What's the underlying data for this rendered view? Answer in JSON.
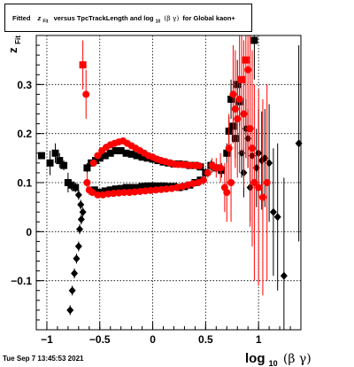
{
  "title": {
    "prefix": "Fitted",
    "z": "z",
    "z_sub": "Fit",
    "middle": "versus TpcTrackLength and log",
    "log_sub": "10",
    "bg": "(β γ)",
    "suffix": "for Global kaon+"
  },
  "footer": {
    "date": "Tue Sep  7 13:45:53 2021"
  },
  "colors": {
    "black_series": "#000000",
    "red_series": "#ff0000",
    "grid": "#000000"
  },
  "chart_data": {
    "type": "scatter",
    "title": "Fitted z_Fit versus TpcTrackLength and log_10 (β γ) for Global kaon+",
    "xlabel": {
      "main": "log",
      "sub": "10",
      "rest": "(β γ)"
    },
    "ylabel": {
      "main": "z",
      "sub": "Fit"
    },
    "xlim": [
      -1.1,
      1.4
    ],
    "ylim": [
      -0.2,
      0.4
    ],
    "x_ticks": [
      {
        "value": -1,
        "label": "−1"
      },
      {
        "value": -0.5,
        "label": "−0.5"
      },
      {
        "value": 0,
        "label": "0"
      },
      {
        "value": 0.5,
        "label": "0.5"
      },
      {
        "value": 1,
        "label": "1"
      }
    ],
    "y_ticks": [
      {
        "value": -0.1,
        "label": "−0.1"
      },
      {
        "value": 0,
        "label": "0"
      },
      {
        "value": 0.1,
        "label": "0.1"
      },
      {
        "value": 0.2,
        "label": "0.2"
      },
      {
        "value": 0.3,
        "label": "0.3"
      }
    ],
    "grid": true,
    "series": [
      {
        "color": "#000000",
        "points": [
          [
            -1.05,
            0.155,
            0.005,
            "square"
          ],
          [
            -0.97,
            0.14,
            0.025,
            "square"
          ],
          [
            -0.92,
            0.16,
            0.02,
            "square"
          ],
          [
            -0.88,
            0.145,
            0.015,
            "square"
          ],
          [
            -0.84,
            0.135,
            0.01,
            "square"
          ],
          [
            -0.8,
            0.1,
            0.02,
            "square"
          ],
          [
            -0.77,
            0.095,
            0.01,
            "square"
          ],
          [
            -0.73,
            0.09,
            0.01,
            "square"
          ],
          [
            -0.7,
            0.075,
            0.01,
            "diamond"
          ],
          [
            -0.68,
            0.055,
            0.01,
            "diamond"
          ],
          [
            -0.66,
            0.04,
            0.01,
            "diamond"
          ],
          [
            -0.675,
            0.025,
            0.01,
            "diamond"
          ],
          [
            -0.69,
            0.005,
            0.01,
            "diamond"
          ],
          [
            -0.7,
            -0.03,
            0.01,
            "diamond"
          ],
          [
            -0.72,
            -0.055,
            0.01,
            "diamond"
          ],
          [
            -0.74,
            -0.085,
            0.01,
            "diamond"
          ],
          [
            -0.76,
            -0.12,
            0.01,
            "diamond"
          ],
          [
            -0.78,
            -0.16,
            0.01,
            "diamond"
          ],
          [
            -0.62,
            0.13,
            0.01,
            "square"
          ],
          [
            -0.58,
            0.14,
            0.005,
            "square"
          ],
          [
            -0.54,
            0.145,
            0.005,
            "square"
          ],
          [
            -0.5,
            0.15,
            0.005,
            "square"
          ],
          [
            -0.45,
            0.155,
            0.005,
            "square"
          ],
          [
            -0.4,
            0.16,
            0.005,
            "square"
          ],
          [
            -0.35,
            0.165,
            0.005,
            "square"
          ],
          [
            -0.3,
            0.165,
            0.005,
            "square"
          ],
          [
            -0.25,
            0.16,
            0.005,
            "square"
          ],
          [
            -0.2,
            0.158,
            0.005,
            "square"
          ],
          [
            -0.15,
            0.155,
            0.005,
            "square"
          ],
          [
            -0.1,
            0.152,
            0.005,
            "square"
          ],
          [
            -0.05,
            0.15,
            0.005,
            "square"
          ],
          [
            0.0,
            0.148,
            0.005,
            "square"
          ],
          [
            0.05,
            0.145,
            0.005,
            "square"
          ],
          [
            0.1,
            0.142,
            0.005,
            "square"
          ],
          [
            0.15,
            0.14,
            0.005,
            "square"
          ],
          [
            0.2,
            0.138,
            0.005,
            "square"
          ],
          [
            0.25,
            0.138,
            0.005,
            "square"
          ],
          [
            0.3,
            0.137,
            0.005,
            "square"
          ],
          [
            0.35,
            0.135,
            0.005,
            "square"
          ],
          [
            0.4,
            0.135,
            0.005,
            "square"
          ],
          [
            0.45,
            0.132,
            0.005,
            "square"
          ],
          [
            -0.55,
            0.085,
            0.005,
            "square"
          ],
          [
            -0.5,
            0.08,
            0.005,
            "square"
          ],
          [
            -0.45,
            0.083,
            0.005,
            "square"
          ],
          [
            -0.4,
            0.085,
            0.005,
            "square"
          ],
          [
            -0.35,
            0.087,
            0.005,
            "square"
          ],
          [
            -0.3,
            0.088,
            0.005,
            "square"
          ],
          [
            -0.25,
            0.09,
            0.005,
            "square"
          ],
          [
            -0.2,
            0.09,
            0.005,
            "square"
          ],
          [
            -0.15,
            0.09,
            0.005,
            "square"
          ],
          [
            -0.1,
            0.092,
            0.005,
            "square"
          ],
          [
            -0.05,
            0.093,
            0.005,
            "square"
          ],
          [
            0.0,
            0.093,
            0.005,
            "square"
          ],
          [
            0.05,
            0.093,
            0.005,
            "square"
          ],
          [
            0.1,
            0.093,
            0.005,
            "square"
          ],
          [
            0.15,
            0.092,
            0.005,
            "square"
          ],
          [
            0.2,
            0.092,
            0.005,
            "square"
          ],
          [
            0.25,
            0.09,
            0.005,
            "square"
          ],
          [
            0.3,
            0.092,
            0.005,
            "square"
          ],
          [
            0.35,
            0.095,
            0.005,
            "square"
          ],
          [
            0.4,
            0.1,
            0.005,
            "square"
          ],
          [
            0.45,
            0.105,
            0.005,
            "square"
          ],
          [
            0.5,
            0.12,
            0.01,
            "square"
          ],
          [
            0.55,
            0.135,
            0.01,
            "square"
          ],
          [
            0.6,
            0.13,
            0.01,
            "square"
          ],
          [
            0.65,
            0.125,
            0.015,
            "square"
          ],
          [
            0.7,
            0.16,
            0.02,
            "square"
          ],
          [
            0.72,
            0.205,
            0.03,
            "square"
          ],
          [
            0.74,
            0.27,
            0.04,
            "square"
          ],
          [
            0.76,
            0.215,
            0.03,
            "square"
          ],
          [
            0.78,
            0.19,
            0.04,
            "square"
          ],
          [
            0.8,
            0.3,
            0.05,
            "square"
          ],
          [
            0.82,
            0.265,
            0.05,
            "square"
          ],
          [
            0.84,
            0.16,
            0.05,
            "diamond"
          ],
          [
            0.86,
            0.12,
            0.05,
            "diamond"
          ],
          [
            0.88,
            0.21,
            0.06,
            "diamond"
          ],
          [
            0.9,
            0.19,
            0.06,
            "diamond"
          ],
          [
            0.92,
            0.09,
            0.07,
            "diamond"
          ],
          [
            0.94,
            0.155,
            0.07,
            "diamond"
          ],
          [
            0.96,
            0.39,
            0.08,
            "square"
          ],
          [
            0.98,
            0.13,
            0.08,
            "diamond"
          ],
          [
            1.0,
            0.16,
            0.09,
            "diamond"
          ],
          [
            1.03,
            0.145,
            0.1,
            "diamond"
          ],
          [
            1.06,
            0.15,
            0.1,
            "diamond"
          ],
          [
            1.1,
            0.14,
            0.12,
            "diamond"
          ],
          [
            1.14,
            0.04,
            0.13,
            "diamond"
          ],
          [
            1.18,
            0.03,
            0.15,
            "diamond"
          ],
          [
            1.24,
            -0.09,
            0.2,
            "diamond"
          ],
          [
            1.38,
            0.18,
            0.2,
            "diamond"
          ]
        ]
      },
      {
        "color": "#ff0000",
        "points": [
          [
            -0.66,
            0.34,
            0.05,
            "square"
          ],
          [
            -0.63,
            0.28,
            0.05,
            "circle"
          ],
          [
            -0.62,
            0.1,
            0.02,
            "circle"
          ],
          [
            -0.6,
            0.085,
            0.01,
            "circle"
          ],
          [
            -0.57,
            0.08,
            0.005,
            "circle"
          ],
          [
            -0.56,
            0.14,
            0.005,
            "circle"
          ],
          [
            -0.52,
            0.155,
            0.005,
            "circle"
          ],
          [
            -0.48,
            0.165,
            0.005,
            "circle"
          ],
          [
            -0.44,
            0.172,
            0.005,
            "circle"
          ],
          [
            -0.4,
            0.177,
            0.005,
            "circle"
          ],
          [
            -0.36,
            0.18,
            0.005,
            "circle"
          ],
          [
            -0.32,
            0.183,
            0.005,
            "circle"
          ],
          [
            -0.28,
            0.185,
            0.005,
            "circle"
          ],
          [
            -0.24,
            0.18,
            0.005,
            "circle"
          ],
          [
            -0.2,
            0.175,
            0.005,
            "circle"
          ],
          [
            -0.16,
            0.17,
            0.005,
            "circle"
          ],
          [
            -0.12,
            0.165,
            0.005,
            "circle"
          ],
          [
            -0.08,
            0.16,
            0.005,
            "circle"
          ],
          [
            -0.04,
            0.155,
            0.005,
            "circle"
          ],
          [
            0.0,
            0.152,
            0.005,
            "circle"
          ],
          [
            0.04,
            0.148,
            0.005,
            "circle"
          ],
          [
            0.08,
            0.145,
            0.005,
            "circle"
          ],
          [
            0.12,
            0.143,
            0.005,
            "circle"
          ],
          [
            0.16,
            0.14,
            0.005,
            "circle"
          ],
          [
            0.2,
            0.138,
            0.005,
            "circle"
          ],
          [
            0.24,
            0.137,
            0.005,
            "circle"
          ],
          [
            0.28,
            0.137,
            0.005,
            "circle"
          ],
          [
            0.32,
            0.136,
            0.005,
            "circle"
          ],
          [
            0.36,
            0.135,
            0.005,
            "circle"
          ],
          [
            0.4,
            0.135,
            0.005,
            "circle"
          ],
          [
            0.44,
            0.134,
            0.005,
            "circle"
          ],
          [
            -0.52,
            0.075,
            0.005,
            "circle"
          ],
          [
            -0.47,
            0.075,
            0.005,
            "circle"
          ],
          [
            -0.42,
            0.077,
            0.005,
            "circle"
          ],
          [
            -0.37,
            0.078,
            0.005,
            "circle"
          ],
          [
            -0.32,
            0.079,
            0.005,
            "circle"
          ],
          [
            -0.27,
            0.08,
            0.005,
            "circle"
          ],
          [
            -0.22,
            0.08,
            0.005,
            "circle"
          ],
          [
            -0.17,
            0.081,
            0.005,
            "circle"
          ],
          [
            -0.12,
            0.082,
            0.005,
            "circle"
          ],
          [
            -0.07,
            0.083,
            0.005,
            "circle"
          ],
          [
            -0.02,
            0.084,
            0.005,
            "circle"
          ],
          [
            0.03,
            0.085,
            0.005,
            "circle"
          ],
          [
            0.08,
            0.086,
            0.005,
            "circle"
          ],
          [
            0.13,
            0.087,
            0.005,
            "circle"
          ],
          [
            0.18,
            0.088,
            0.005,
            "circle"
          ],
          [
            0.23,
            0.09,
            0.005,
            "circle"
          ],
          [
            0.28,
            0.092,
            0.005,
            "circle"
          ],
          [
            0.33,
            0.095,
            0.005,
            "circle"
          ],
          [
            0.38,
            0.098,
            0.005,
            "circle"
          ],
          [
            0.43,
            0.1,
            0.005,
            "circle"
          ],
          [
            0.48,
            0.105,
            0.01,
            "circle"
          ],
          [
            0.52,
            0.12,
            0.01,
            "circle"
          ],
          [
            0.56,
            0.135,
            0.015,
            "circle"
          ],
          [
            0.6,
            0.13,
            0.02,
            "circle"
          ],
          [
            0.64,
            0.13,
            0.03,
            "circle"
          ],
          [
            0.68,
            0.09,
            0.05,
            "circle"
          ],
          [
            0.7,
            0.08,
            0.06,
            "circle"
          ],
          [
            0.72,
            0.17,
            0.07,
            "circle"
          ],
          [
            0.74,
            0.1,
            0.08,
            "circle"
          ],
          [
            0.76,
            0.28,
            0.1,
            "circle"
          ],
          [
            0.78,
            0.25,
            0.12,
            "circle"
          ],
          [
            0.8,
            0.23,
            0.12,
            "circle"
          ],
          [
            0.82,
            0.27,
            0.15,
            "circle"
          ],
          [
            0.84,
            0.31,
            0.15,
            "square"
          ],
          [
            0.86,
            0.24,
            0.15,
            "circle"
          ],
          [
            0.88,
            0.35,
            0.2,
            "square"
          ],
          [
            0.9,
            0.33,
            0.2,
            "circle"
          ],
          [
            0.92,
            0.21,
            0.2,
            "circle"
          ],
          [
            0.94,
            0.17,
            0.2,
            "circle"
          ],
          [
            0.96,
            0.1,
            0.2,
            "circle"
          ],
          [
            1.0,
            0.09,
            0.2,
            "circle"
          ],
          [
            1.04,
            0.07,
            0.2,
            "circle"
          ],
          [
            1.08,
            0.1,
            0.2,
            "circle"
          ]
        ]
      }
    ]
  }
}
